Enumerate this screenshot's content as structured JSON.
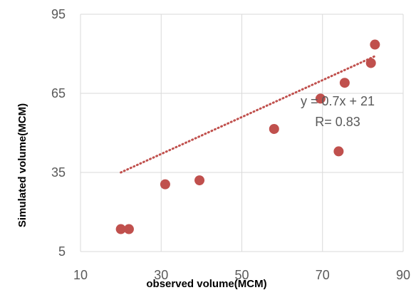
{
  "chart_data": {
    "type": "scatter",
    "xlabel": "observed volume(MCM)",
    "ylabel": "Simulated volume(MCM)",
    "xlim": [
      10,
      90
    ],
    "ylim": [
      5,
      95
    ],
    "x_ticks": [
      "10",
      "30",
      "50",
      "70",
      "90"
    ],
    "y_ticks": [
      "5",
      "35",
      "65",
      "95"
    ],
    "grid": true,
    "legend": "none",
    "series": [
      {
        "color": "#c0504d",
        "points": [
          {
            "x": 20.0,
            "y": 13.5
          },
          {
            "x": 22.0,
            "y": 13.5
          },
          {
            "x": 31.0,
            "y": 30.5
          },
          {
            "x": 39.5,
            "y": 32.0
          },
          {
            "x": 58.0,
            "y": 51.5
          },
          {
            "x": 69.5,
            "y": 63.0
          },
          {
            "x": 74.0,
            "y": 43.0
          },
          {
            "x": 75.5,
            "y": 69.0
          },
          {
            "x": 82.0,
            "y": 76.5
          },
          {
            "x": 83.0,
            "y": 83.5
          }
        ]
      }
    ],
    "trendline": {
      "type": "linear",
      "color": "#c0504d",
      "style": "dotted",
      "slope": 0.7,
      "intercept": 21,
      "x_range": [
        20,
        83
      ]
    },
    "annotations": {
      "equation": "y = 0.7x + 21",
      "r_value": "R= 0.83"
    }
  }
}
